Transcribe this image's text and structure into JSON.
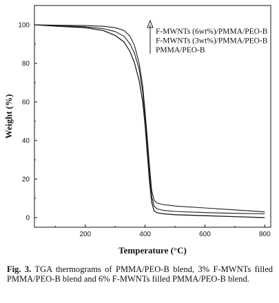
{
  "chart_data": {
    "type": "line",
    "xlabel": "Temperature (°C)",
    "ylabel": "Weight (%)",
    "xlim": [
      30,
      820
    ],
    "ylim": [
      -5,
      110
    ],
    "xticks": [
      200,
      400,
      600,
      800
    ],
    "yticks": [
      0,
      20,
      40,
      60,
      80,
      100
    ],
    "grid": false,
    "legend_placement": "top-right",
    "legend_arrow": true,
    "series": [
      {
        "name": "F-MWNTs (6wt%)/PMMA/PEO-B",
        "x": [
          30,
          100,
          200,
          260,
          300,
          330,
          350,
          365,
          380,
          392,
          400,
          408,
          415,
          422,
          430,
          440,
          460,
          500,
          600,
          700,
          800
        ],
        "y": [
          100,
          99.8,
          99.6,
          99.2,
          98.5,
          97,
          94,
          89,
          80,
          68,
          55,
          40,
          26,
          14,
          9,
          7.5,
          6.8,
          6,
          5,
          4,
          3
        ]
      },
      {
        "name": "F-MWNTs (3wt%)/PMMA/PEO-B",
        "x": [
          30,
          100,
          200,
          260,
          300,
          330,
          350,
          365,
          380,
          392,
          400,
          408,
          415,
          422,
          430,
          440,
          460,
          500,
          600,
          700,
          800
        ],
        "y": [
          100,
          99.5,
          99,
          98,
          96.5,
          94,
          90,
          85,
          77,
          65,
          52,
          36,
          22,
          11,
          6,
          4.5,
          3.8,
          3.2,
          2.6,
          2.2,
          2
        ]
      },
      {
        "name": "PMMA/PEO-B",
        "x": [
          30,
          100,
          200,
          260,
          300,
          330,
          350,
          365,
          380,
          392,
          400,
          408,
          415,
          422,
          430,
          440,
          460,
          500,
          600,
          700,
          800
        ],
        "y": [
          100,
          99.3,
          98.5,
          97,
          94.5,
          91,
          86,
          80,
          71,
          60,
          48,
          32,
          18,
          8,
          3.5,
          2.5,
          2,
          1.5,
          1,
          0.5,
          0
        ]
      }
    ]
  },
  "caption": {
    "label": "Fig. 3.",
    "text": " TGA thermograms of PMMA/PEO-B blend, 3% F-MWNTs filled PMMA/PEO-B blend and 6% F-MWNTs filled PMMA/PEO-B blend."
  },
  "colors": {
    "line": "#1a1a1a",
    "axis": "#111111",
    "background": "#ffffff"
  }
}
